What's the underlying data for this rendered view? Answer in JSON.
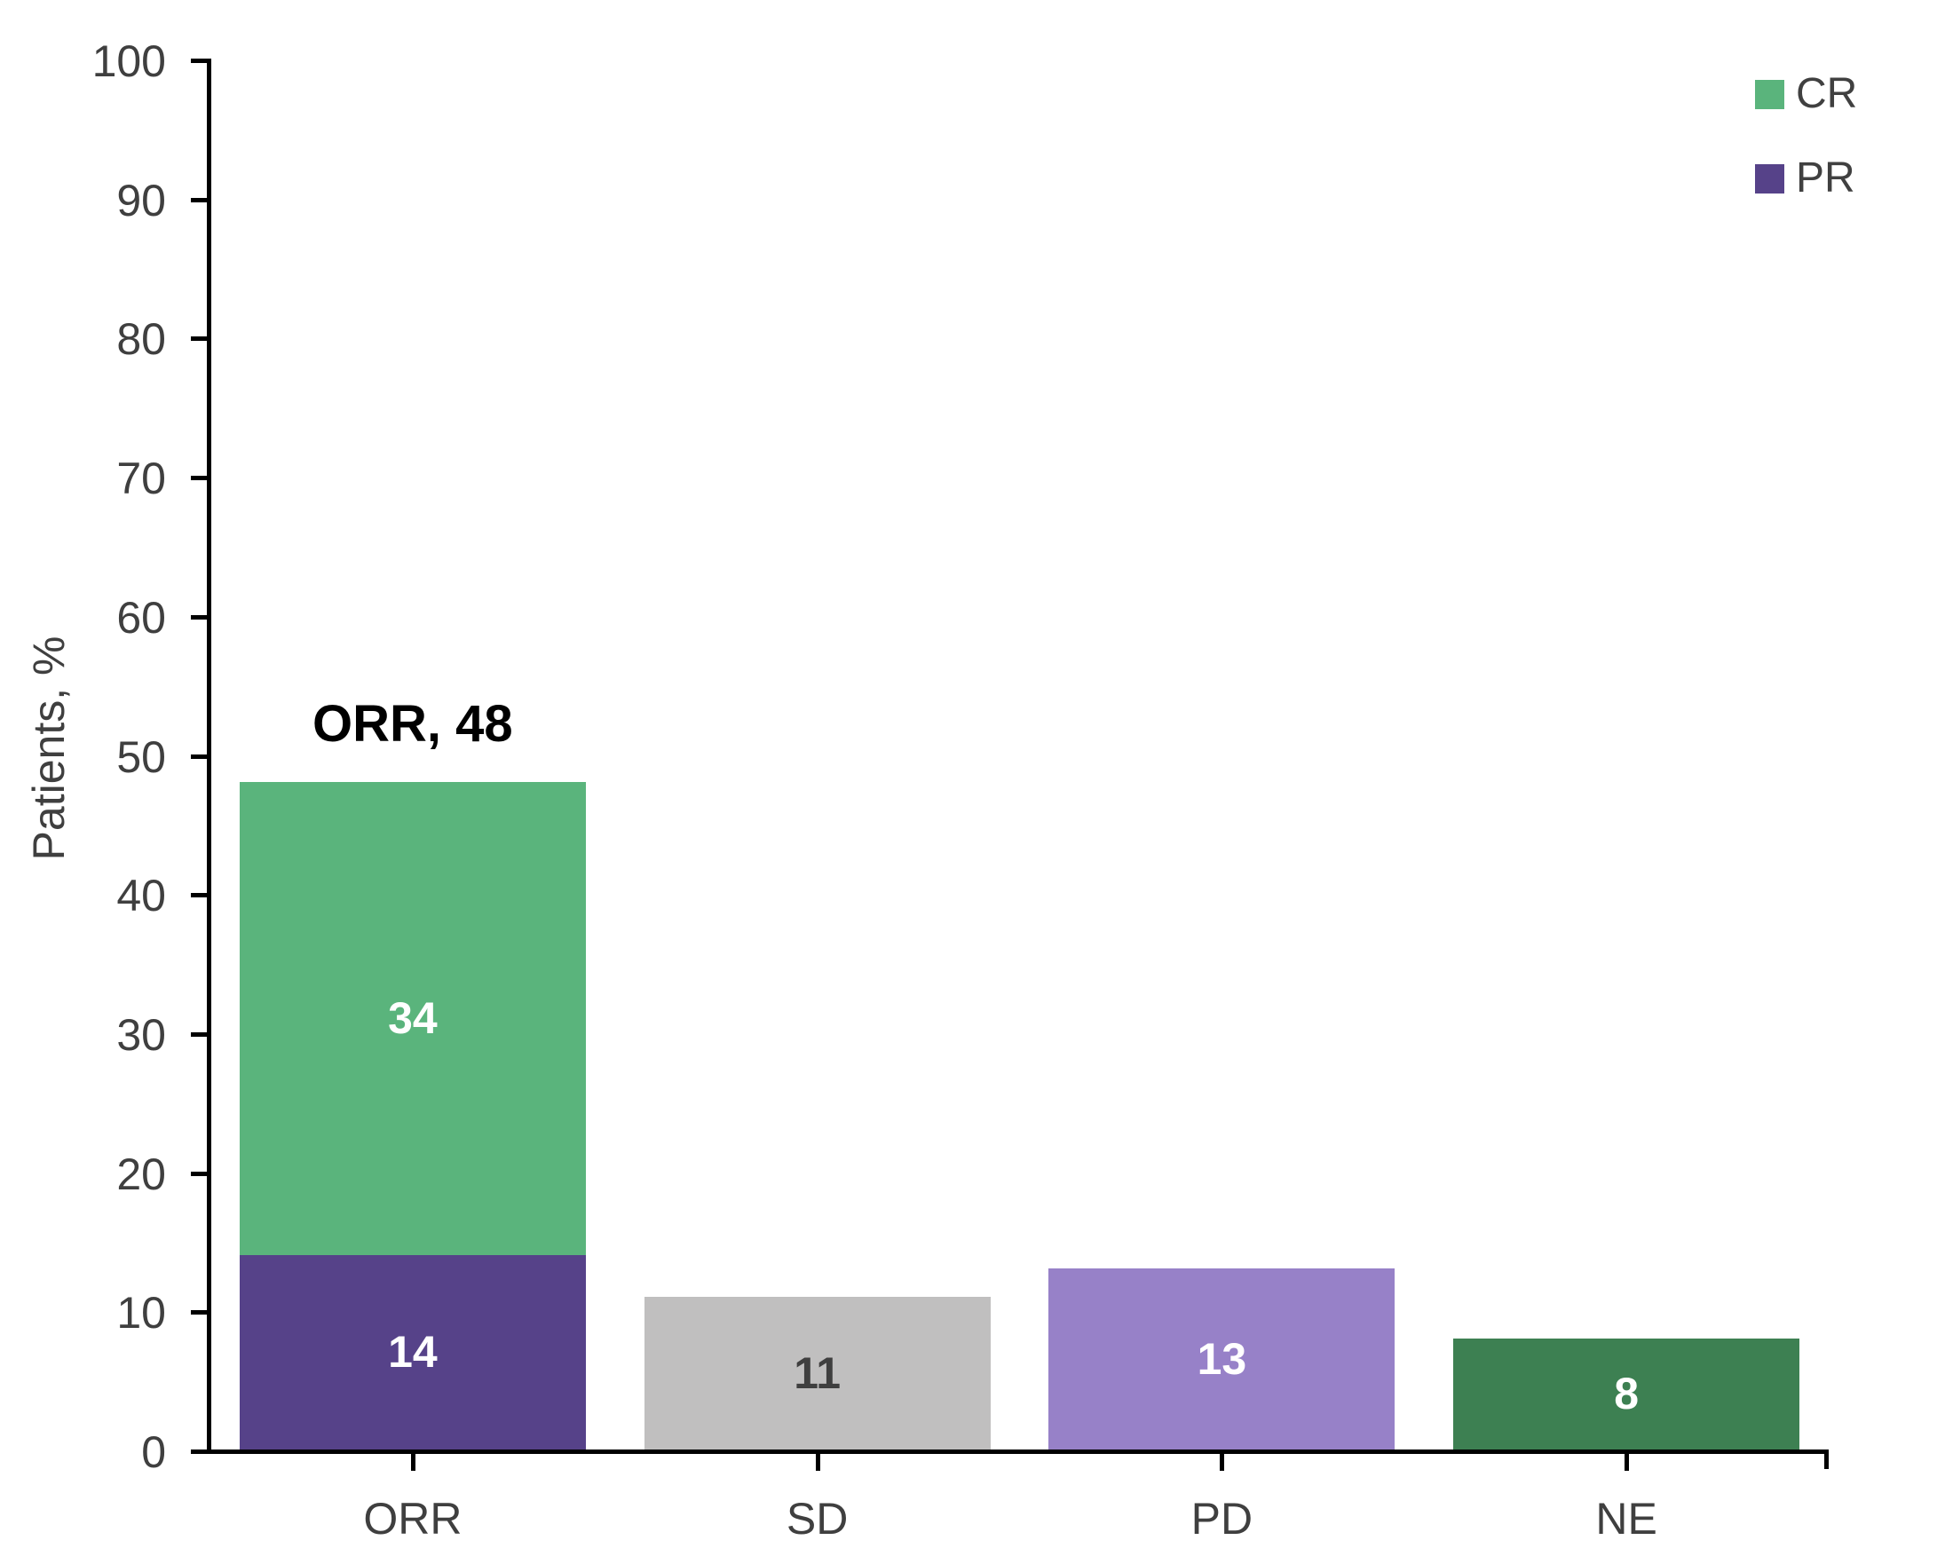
{
  "chart_data": {
    "type": "bar",
    "stacked": true,
    "title": "",
    "xlabel": "",
    "ylabel": "Patients, %",
    "ylim": [
      0,
      100
    ],
    "yticks": [
      0,
      10,
      20,
      30,
      40,
      50,
      60,
      70,
      80,
      90,
      100
    ],
    "grid": false,
    "legend_position": "top-right",
    "categories": [
      "ORR",
      "SD",
      "PD",
      "NE"
    ],
    "bars": [
      {
        "category": "ORR",
        "annotation": "ORR, 48",
        "total": 48,
        "segments": [
          {
            "name": "PR",
            "value": 14,
            "color": "#564289",
            "label_color": "#ffffff"
          },
          {
            "name": "CR",
            "value": 34,
            "color": "#5ab47c",
            "label_color": "#ffffff"
          }
        ]
      },
      {
        "category": "SD",
        "total": 11,
        "segments": [
          {
            "name": "SD",
            "value": 11,
            "color": "#c0bfbf",
            "label_color": "#3f3f3f"
          }
        ]
      },
      {
        "category": "PD",
        "total": 13,
        "segments": [
          {
            "name": "PD",
            "value": 13,
            "color": "#9781c8",
            "label_color": "#ffffff"
          }
        ]
      },
      {
        "category": "NE",
        "total": 8,
        "segments": [
          {
            "name": "NE",
            "value": 8,
            "color": "#3d8052",
            "label_color": "#ffffff"
          }
        ]
      }
    ],
    "legend": [
      {
        "label": "CR",
        "color": "#5ab47c"
      },
      {
        "label": "PR",
        "color": "#564289"
      }
    ]
  },
  "colors": {
    "axis": "#000000",
    "text": "#3f3f3f",
    "background": "#ffffff"
  }
}
